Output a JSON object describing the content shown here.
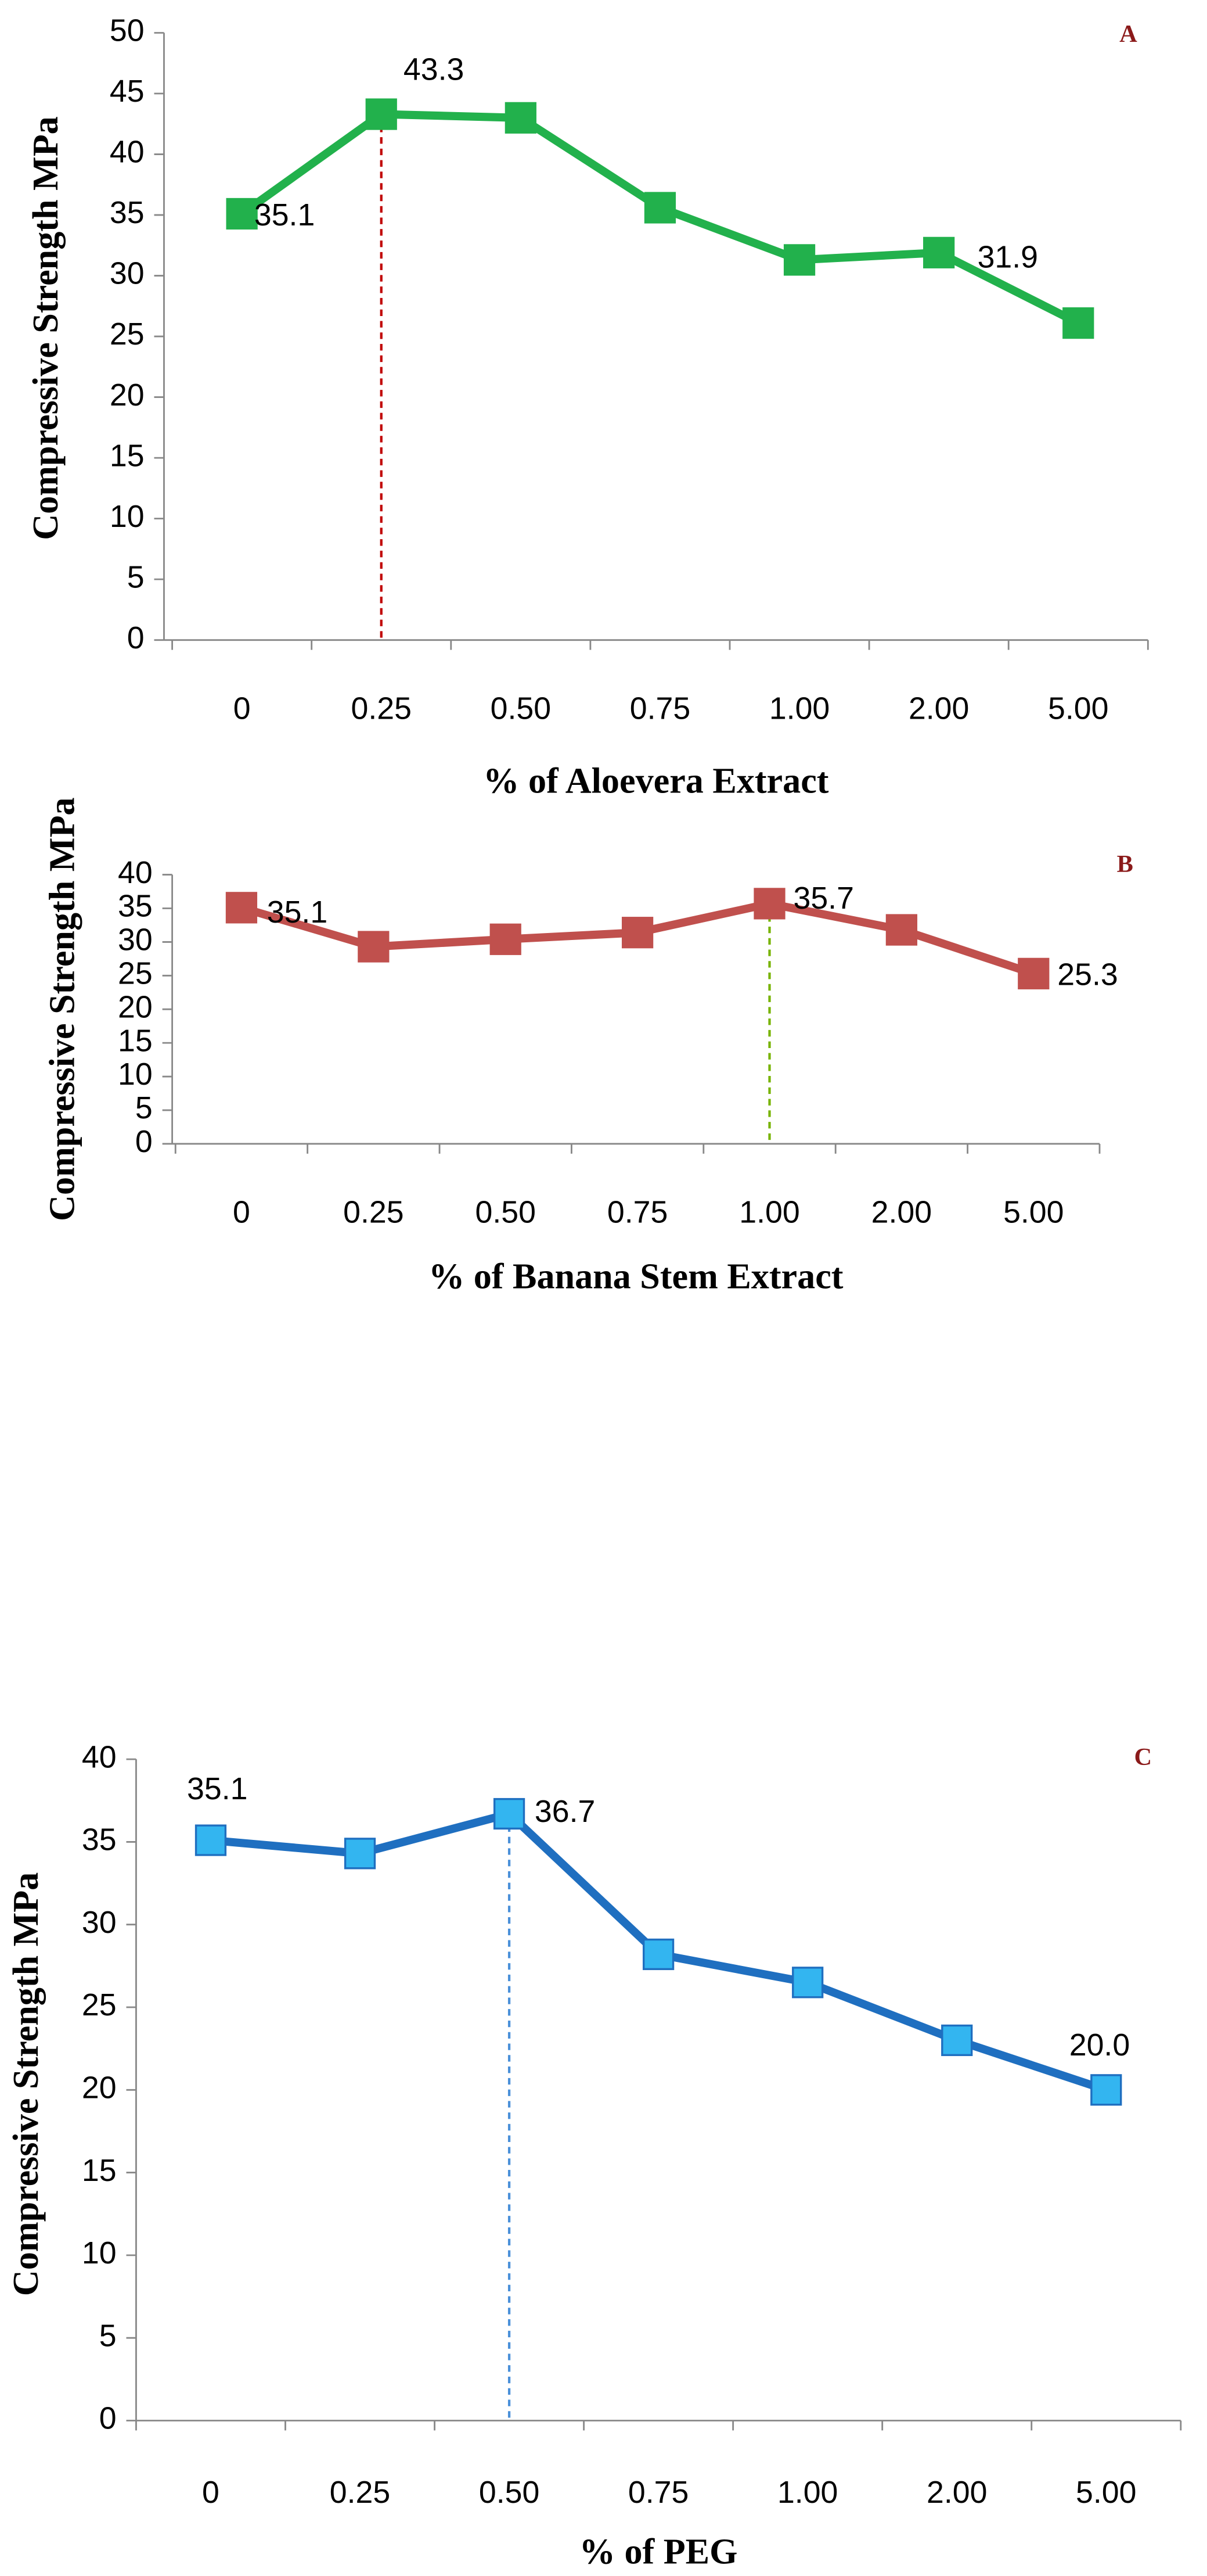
{
  "chart_data": [
    {
      "type": "line",
      "annotation": "A",
      "x_label": "% of Aloevera Extract",
      "y_label": "Compressive Strength MPa",
      "categories": [
        "0",
        "0.25",
        "0.50",
        "0.75",
        "1.00",
        "2.00",
        "5.00"
      ],
      "series": [
        {
          "color": "#22b14c",
          "marker_color": "#22b14c",
          "values": [
            35.1,
            43.3,
            43.0,
            35.6,
            31.3,
            31.9,
            26.1
          ],
          "value_labels": [
            "35.1",
            "43.3",
            null,
            null,
            null,
            "31.9",
            null
          ]
        }
      ],
      "ylim": [
        0,
        50
      ],
      "yticks": [
        0,
        5,
        10,
        15,
        20,
        25,
        30,
        35,
        40,
        45,
        50
      ],
      "marker_line": {
        "at": "0.25",
        "color": "#c00000"
      }
    },
    {
      "type": "line",
      "annotation": "B",
      "x_label": "% of Banana Stem Extract",
      "y_label": "Compressive Strength MPa",
      "categories": [
        "0",
        "0.25",
        "0.50",
        "0.75",
        "1.00",
        "2.00",
        "5.00"
      ],
      "series": [
        {
          "color": "#c0504d",
          "marker_color": "#c0504d",
          "values": [
            35.1,
            29.3,
            30.4,
            31.4,
            35.7,
            31.8,
            25.3
          ],
          "value_labels": [
            "35.1",
            null,
            null,
            null,
            "35.7",
            null,
            "25.3"
          ]
        }
      ],
      "ylim": [
        0,
        40
      ],
      "yticks": [
        0,
        5,
        10,
        15,
        20,
        25,
        30,
        35,
        40
      ],
      "marker_line": {
        "at": "1.00",
        "color": "#77b300"
      }
    },
    {
      "type": "line",
      "annotation": "C",
      "x_label": "% of PEG",
      "y_label": "Compressive Strength MPa",
      "categories": [
        "0",
        "0.25",
        "0.50",
        "0.75",
        "1.00",
        "2.00",
        "5.00"
      ],
      "series": [
        {
          "color": "#1f6fc0",
          "marker_color": "#33b5f0",
          "values": [
            35.1,
            34.3,
            36.7,
            28.2,
            26.5,
            23.0,
            20.0
          ],
          "value_labels": [
            "35.1",
            null,
            "36.7",
            null,
            null,
            null,
            "20.0"
          ]
        }
      ],
      "ylim": [
        0,
        40
      ],
      "yticks": [
        0,
        5,
        10,
        15,
        20,
        25,
        30,
        35,
        40
      ],
      "marker_line": {
        "at": "0.50",
        "color": "#4a90d9"
      }
    }
  ]
}
